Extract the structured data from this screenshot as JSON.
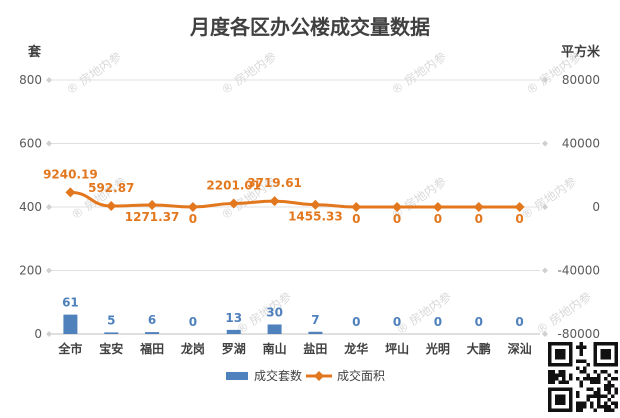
{
  "chart_data": {
    "type": "bar",
    "title": "月度各区办公楼成交量数据",
    "left_axis_unit": "套",
    "right_axis_unit": "平方米",
    "categories": [
      "全市",
      "宝安",
      "福田",
      "龙岗",
      "罗湖",
      "南山",
      "盐田",
      "龙华",
      "坪山",
      "光明",
      "大鹏",
      "深汕"
    ],
    "series": [
      {
        "name": "成交套数",
        "type": "bar",
        "axis": "left",
        "color": "#4f81bd",
        "values": [
          61,
          5,
          6,
          0,
          13,
          30,
          7,
          0,
          0,
          0,
          0,
          0
        ]
      },
      {
        "name": "成交面积",
        "type": "line",
        "axis": "right",
        "color": "#e2771e",
        "values": [
          9240.19,
          592.87,
          1271.37,
          0,
          2201.01,
          3719.61,
          1455.33,
          0,
          0,
          0,
          0,
          0
        ]
      }
    ],
    "bar_labels": [
      "61",
      "5",
      "6",
      "0",
      "13",
      "30",
      "7",
      "0",
      "0",
      "0",
      "0",
      "0"
    ],
    "line_labels": [
      "9240.19",
      "592.87",
      "1271.37",
      "0",
      "2201.01",
      "3719.61",
      "1455.33",
      "0",
      "0",
      "0",
      "0",
      "0"
    ],
    "left_ylim": [
      0,
      800
    ],
    "left_ticks": [
      0,
      200,
      400,
      600,
      800
    ],
    "right_ylim": [
      -80000,
      80000
    ],
    "right_ticks": [
      -80000,
      -40000,
      0,
      40000,
      80000
    ],
    "right_tick_labels": [
      "-80000",
      "-40000",
      "0",
      "40000",
      "80000"
    ],
    "grid": true,
    "legend_position": "bottom"
  },
  "watermark": "房地内参"
}
